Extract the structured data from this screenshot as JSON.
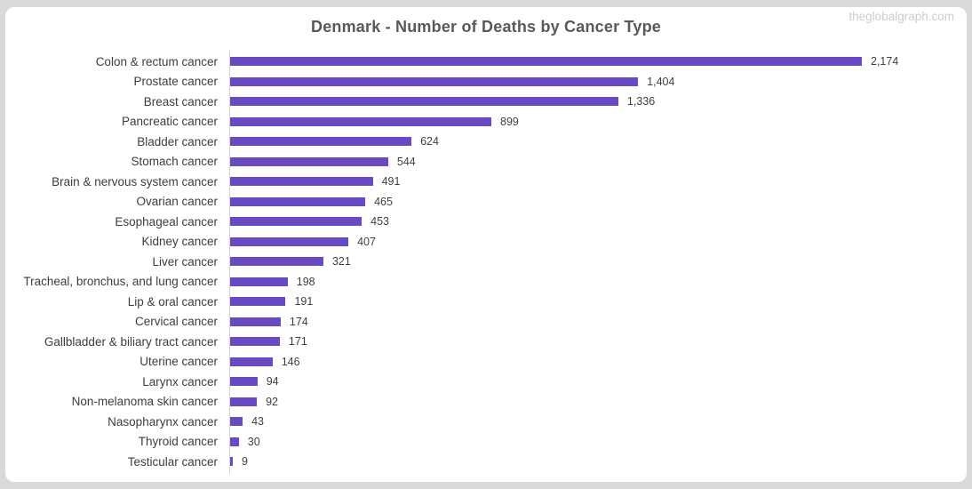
{
  "header": {
    "title": "Denmark - Number of Deaths by Cancer Type",
    "watermark": "theglobalgraph.com"
  },
  "colors": {
    "bar": "#6a49c5",
    "title_text": "#595959",
    "category_text": "#3d3d3d",
    "value_text": "#404040",
    "axis_line": "#d2d5d8",
    "watermark_text": "#c9cdd0",
    "page_background": "#d9d9d9",
    "card_background": "#ffffff"
  },
  "chart_data": {
    "type": "bar",
    "orientation": "horizontal",
    "title": "Denmark - Number of Deaths by Cancer Type",
    "xlabel": "",
    "ylabel": "",
    "xlim": [
      0,
      2174
    ],
    "grid": false,
    "legend": false,
    "data_labels_shown": true,
    "bar_color": "#6a49c5",
    "categories": [
      "Colon & rectum cancer",
      "Prostate cancer",
      "Breast cancer",
      "Pancreatic cancer",
      "Bladder cancer",
      "Stomach cancer",
      "Brain & nervous system cancer",
      "Ovarian cancer",
      "Esophageal cancer",
      "Kidney cancer",
      "Liver cancer",
      "Tracheal, bronchus, and lung cancer",
      "Lip & oral cancer",
      "Cervical cancer",
      "Gallbladder & biliary tract cancer",
      "Uterine cancer",
      "Larynx cancer",
      "Non-melanoma skin cancer",
      "Nasopharynx cancer",
      "Thyroid cancer",
      "Testicular cancer"
    ],
    "values": [
      2174,
      1404,
      1336,
      899,
      624,
      544,
      491,
      465,
      453,
      407,
      321,
      198,
      191,
      174,
      171,
      146,
      94,
      92,
      43,
      30,
      9
    ],
    "value_labels": [
      "2,174",
      "1,404",
      "1,336",
      "899",
      "624",
      "544",
      "491",
      "465",
      "453",
      "407",
      "321",
      "198",
      "191",
      "174",
      "171",
      "146",
      "94",
      "92",
      "43",
      "30",
      "9"
    ]
  }
}
